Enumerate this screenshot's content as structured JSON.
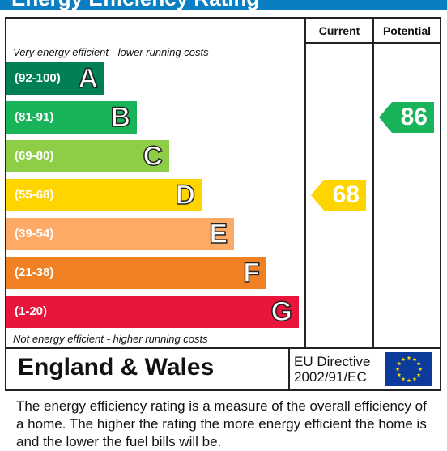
{
  "title": "Energy Efficiency Rating",
  "columns": {
    "current": "Current",
    "potential": "Potential"
  },
  "top_note": "Very energy efficient - lower running costs",
  "bottom_note": "Not energy efficient - higher running costs",
  "bands": [
    {
      "range": "(92-100)",
      "letter": "A",
      "color": "#008054"
    },
    {
      "range": "(81-91)",
      "letter": "B",
      "color": "#19b459"
    },
    {
      "range": "(69-80)",
      "letter": "C",
      "color": "#8dce46"
    },
    {
      "range": "(55-68)",
      "letter": "D",
      "color": "#ffd500"
    },
    {
      "range": "(39-54)",
      "letter": "E",
      "color": "#fcaa65"
    },
    {
      "range": "(21-38)",
      "letter": "F",
      "color": "#ef8023"
    },
    {
      "range": "(1-20)",
      "letter": "G",
      "color": "#e9153b"
    }
  ],
  "current_rating": {
    "value": "68",
    "band": "D",
    "color": "#ffd500"
  },
  "potential_rating": {
    "value": "86",
    "band": "B",
    "color": "#19b459"
  },
  "footer": {
    "region": "England & Wales",
    "directive_line1": "EU Directive",
    "directive_line2": "2002/91/EC",
    "flag_icon": "eu-flag-icon",
    "flag_color": "#0c3b9c",
    "star_color": "#ffdd00"
  },
  "description": "The energy efficiency rating is a measure of the overall efficiency of a home.  The higher the rating the more energy efficient the home is and the lower the fuel bills will be."
}
